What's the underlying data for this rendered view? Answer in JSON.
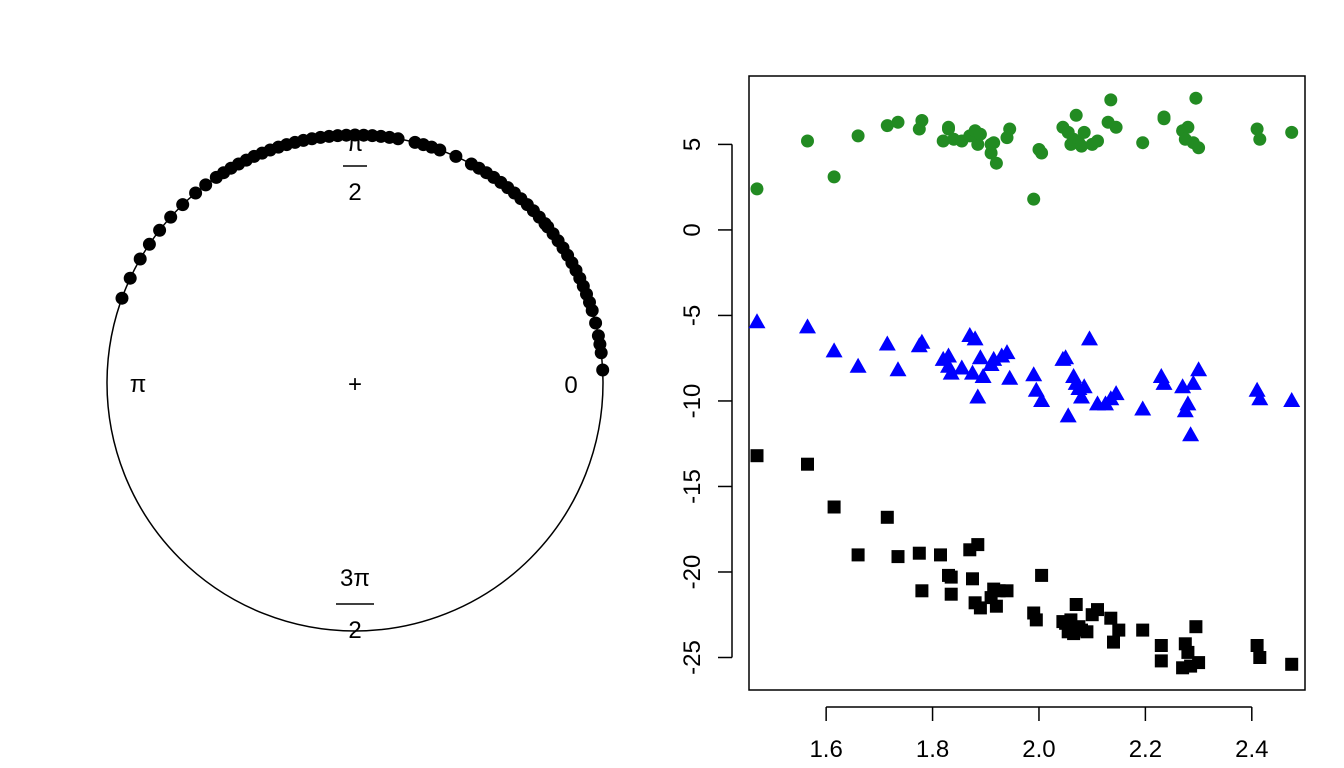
{
  "chart_data": [
    {
      "type": "circular",
      "title": "",
      "direction_labels": {
        "right": "0",
        "top": "π",
        "top_denominator": "2",
        "left": "π",
        "bottom": "3π",
        "bottom_denominator": "2"
      },
      "center_marker": "+",
      "angles_deg": [
        3,
        7,
        9,
        11,
        14,
        17,
        19,
        21,
        23,
        25,
        27,
        29,
        31,
        33,
        35,
        37,
        39,
        40,
        42,
        44,
        46,
        48,
        50,
        52,
        54,
        56,
        58,
        60,
        62,
        66,
        70,
        72,
        74,
        76,
        80,
        82,
        84,
        86,
        88,
        90,
        92,
        94,
        96,
        98,
        100,
        102,
        104,
        106,
        108,
        110,
        112,
        114,
        116,
        118,
        120,
        122,
        124,
        127,
        130,
        134,
        138,
        142,
        146,
        150,
        155,
        160
      ],
      "point_color": "#000000"
    },
    {
      "type": "scatter",
      "title": "",
      "xlabel": "",
      "ylabel": "",
      "xlim": [
        1.455,
        2.5
      ],
      "ylim": [
        -26.9,
        9.0
      ],
      "xticks": [
        1.6,
        1.8,
        2.0,
        2.2,
        2.4
      ],
      "yticks": [
        5,
        0,
        -5,
        -10,
        -15,
        -20,
        -25
      ],
      "series": [
        {
          "marker": "circle",
          "color": "#228B22",
          "points": [
            [
              1.47,
              2.4
            ],
            [
              1.565,
              5.2
            ],
            [
              1.615,
              3.1
            ],
            [
              1.66,
              5.5
            ],
            [
              1.715,
              6.1
            ],
            [
              1.735,
              6.3
            ],
            [
              1.78,
              6.4
            ],
            [
              1.775,
              5.9
            ],
            [
              1.82,
              5.2
            ],
            [
              1.83,
              5.9
            ],
            [
              1.83,
              6.0
            ],
            [
              1.84,
              5.3
            ],
            [
              1.855,
              5.2
            ],
            [
              1.87,
              5.5
            ],
            [
              1.88,
              5.8
            ],
            [
              1.885,
              5.0
            ],
            [
              1.89,
              5.6
            ],
            [
              1.91,
              4.5
            ],
            [
              1.91,
              5.0
            ],
            [
              1.915,
              5.1
            ],
            [
              1.92,
              3.9
            ],
            [
              1.94,
              5.4
            ],
            [
              1.945,
              5.9
            ],
            [
              1.99,
              1.8
            ],
            [
              2.0,
              4.7
            ],
            [
              2.005,
              4.5
            ],
            [
              2.045,
              6.0
            ],
            [
              2.055,
              5.7
            ],
            [
              2.06,
              5.0
            ],
            [
              2.065,
              5.3
            ],
            [
              2.07,
              6.7
            ],
            [
              2.075,
              5.1
            ],
            [
              2.08,
              4.9
            ],
            [
              2.085,
              5.7
            ],
            [
              2.1,
              5.0
            ],
            [
              2.11,
              5.2
            ],
            [
              2.13,
              6.3
            ],
            [
              2.135,
              7.6
            ],
            [
              2.145,
              6.0
            ],
            [
              2.195,
              5.1
            ],
            [
              2.235,
              6.6
            ],
            [
              2.235,
              6.5
            ],
            [
              2.27,
              5.8
            ],
            [
              2.275,
              5.3
            ],
            [
              2.28,
              6.0
            ],
            [
              2.29,
              5.1
            ],
            [
              2.295,
              7.7
            ],
            [
              2.3,
              4.8
            ],
            [
              2.41,
              5.9
            ],
            [
              2.415,
              5.3
            ],
            [
              2.475,
              5.7
            ]
          ]
        },
        {
          "marker": "triangle",
          "color": "#0000FF",
          "points": [
            [
              1.47,
              -5.4
            ],
            [
              1.565,
              -5.7
            ],
            [
              1.615,
              -7.1
            ],
            [
              1.66,
              -8.0
            ],
            [
              1.715,
              -6.7
            ],
            [
              1.735,
              -8.2
            ],
            [
              1.775,
              -6.8
            ],
            [
              1.78,
              -6.6
            ],
            [
              1.82,
              -7.6
            ],
            [
              1.83,
              -7.4
            ],
            [
              1.83,
              -8.0
            ],
            [
              1.835,
              -8.4
            ],
            [
              1.855,
              -8.1
            ],
            [
              1.87,
              -6.2
            ],
            [
              1.875,
              -8.4
            ],
            [
              1.88,
              -6.4
            ],
            [
              1.885,
              -9.8
            ],
            [
              1.89,
              -7.5
            ],
            [
              1.895,
              -8.6
            ],
            [
              1.91,
              -7.9
            ],
            [
              1.915,
              -7.6
            ],
            [
              1.93,
              -7.4
            ],
            [
              1.94,
              -7.2
            ],
            [
              1.945,
              -8.7
            ],
            [
              1.99,
              -8.5
            ],
            [
              1.995,
              -9.4
            ],
            [
              2.005,
              -10.0
            ],
            [
              2.045,
              -7.6
            ],
            [
              2.05,
              -7.5
            ],
            [
              2.055,
              -10.9
            ],
            [
              2.065,
              -8.6
            ],
            [
              2.07,
              -9.0
            ],
            [
              2.075,
              -9.3
            ],
            [
              2.08,
              -9.8
            ],
            [
              2.085,
              -9.2
            ],
            [
              2.095,
              -6.4
            ],
            [
              2.11,
              -10.2
            ],
            [
              2.125,
              -10.2
            ],
            [
              2.135,
              -9.9
            ],
            [
              2.145,
              -9.6
            ],
            [
              2.195,
              -10.5
            ],
            [
              2.23,
              -8.6
            ],
            [
              2.235,
              -9.0
            ],
            [
              2.27,
              -9.2
            ],
            [
              2.275,
              -10.6
            ],
            [
              2.28,
              -10.2
            ],
            [
              2.285,
              -12.0
            ],
            [
              2.29,
              -9.0
            ],
            [
              2.3,
              -8.2
            ],
            [
              2.41,
              -9.4
            ],
            [
              2.415,
              -9.9
            ],
            [
              2.475,
              -10.0
            ]
          ]
        },
        {
          "marker": "square",
          "color": "#000000",
          "points": [
            [
              1.47,
              -13.2
            ],
            [
              1.565,
              -13.7
            ],
            [
              1.615,
              -16.2
            ],
            [
              1.66,
              -19.0
            ],
            [
              1.715,
              -16.8
            ],
            [
              1.735,
              -19.1
            ],
            [
              1.775,
              -18.9
            ],
            [
              1.78,
              -21.1
            ],
            [
              1.815,
              -19.0
            ],
            [
              1.83,
              -20.2
            ],
            [
              1.835,
              -20.3
            ],
            [
              1.835,
              -21.3
            ],
            [
              1.87,
              -18.7
            ],
            [
              1.875,
              -20.4
            ],
            [
              1.88,
              -21.8
            ],
            [
              1.885,
              -18.4
            ],
            [
              1.89,
              -22.1
            ],
            [
              1.91,
              -21.5
            ],
            [
              1.915,
              -21.0
            ],
            [
              1.92,
              -22.0
            ],
            [
              1.925,
              -21.1
            ],
            [
              1.94,
              -21.1
            ],
            [
              1.99,
              -22.4
            ],
            [
              1.995,
              -22.8
            ],
            [
              2.005,
              -20.2
            ],
            [
              2.045,
              -22.9
            ],
            [
              2.05,
              -23.0
            ],
            [
              2.055,
              -23.5
            ],
            [
              2.06,
              -22.8
            ],
            [
              2.065,
              -23.6
            ],
            [
              2.07,
              -21.9
            ],
            [
              2.075,
              -23.2
            ],
            [
              2.08,
              -23.4
            ],
            [
              2.09,
              -23.5
            ],
            [
              2.1,
              -22.5
            ],
            [
              2.11,
              -22.2
            ],
            [
              2.135,
              -22.7
            ],
            [
              2.14,
              -24.1
            ],
            [
              2.15,
              -23.4
            ],
            [
              2.195,
              -23.4
            ],
            [
              2.23,
              -24.3
            ],
            [
              2.23,
              -25.2
            ],
            [
              2.27,
              -25.6
            ],
            [
              2.275,
              -24.2
            ],
            [
              2.28,
              -24.7
            ],
            [
              2.285,
              -25.5
            ],
            [
              2.295,
              -23.2
            ],
            [
              2.3,
              -25.3
            ],
            [
              2.41,
              -24.3
            ],
            [
              2.415,
              -25.0
            ],
            [
              2.475,
              -25.4
            ]
          ]
        }
      ]
    }
  ]
}
